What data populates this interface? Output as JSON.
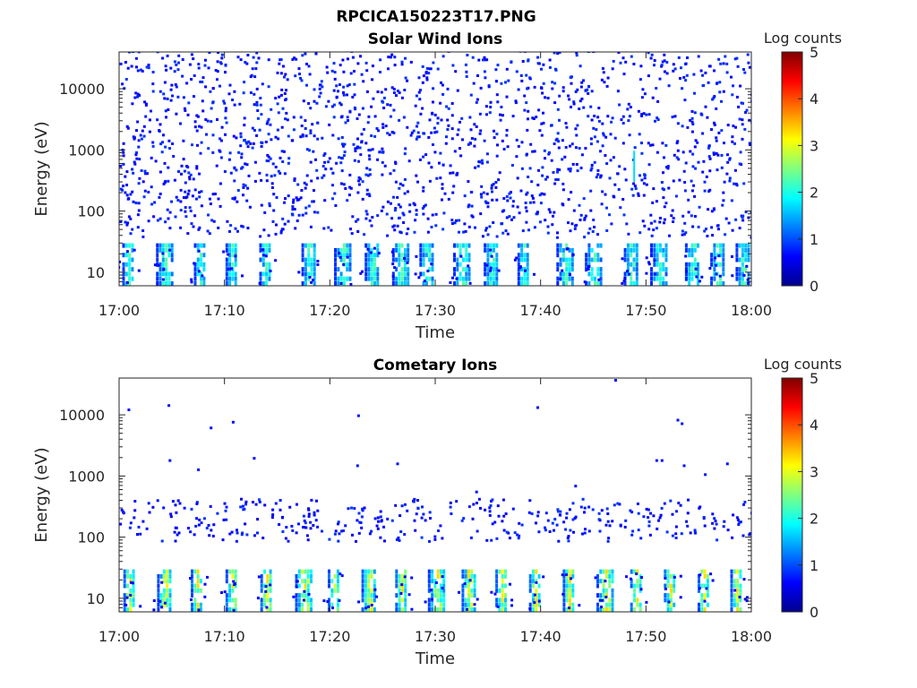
{
  "figure_title": "RPCICA150223T17.PNG",
  "chart_data": [
    {
      "type": "heatmap",
      "title": "Solar Wind Ions",
      "xlabel": "Time",
      "ylabel": "Energy (eV)",
      "x_tick_labels": [
        "17:00",
        "17:10",
        "17:20",
        "17:30",
        "17:40",
        "17:50",
        "18:00"
      ],
      "x_range_minutes": [
        0,
        60
      ],
      "y_scale": "log",
      "y_tick_labels": [
        "10",
        "100",
        "1000",
        "10000"
      ],
      "y_range": [
        6,
        40000
      ],
      "colorbar": {
        "title": "Log counts",
        "range": [
          0,
          5
        ],
        "tick_labels": [
          "0",
          "1",
          "2",
          "3",
          "4",
          "5"
        ],
        "colormap": "jet"
      },
      "features": {
        "background_noise_max_log_counts": 1,
        "low_energy_band_eV": [
          6,
          30
        ],
        "low_energy_band_peak_log_counts": 2,
        "burst_times_minutes": [
          0.8,
          4.0,
          7.6,
          10.6,
          13.8,
          17.8,
          20.9,
          23.8,
          26.4,
          29.0,
          32.2,
          35.1,
          38.3,
          42.0,
          44.7,
          48.4,
          50.9,
          54.2,
          56.6,
          59.0
        ],
        "spike": {
          "time_minutes": 48.8,
          "energy_range_eV": [
            300,
            900
          ],
          "log_counts": 1.7
        }
      }
    },
    {
      "type": "heatmap",
      "title": "Cometary Ions",
      "xlabel": "Time",
      "ylabel": "Energy (eV)",
      "x_tick_labels": [
        "17:00",
        "17:10",
        "17:20",
        "17:30",
        "17:40",
        "17:50",
        "18:00"
      ],
      "x_range_minutes": [
        0,
        60
      ],
      "y_scale": "log",
      "y_tick_labels": [
        "10",
        "100",
        "1000",
        "10000"
      ],
      "y_range": [
        6,
        40000
      ],
      "colorbar": {
        "title": "Log counts",
        "range": [
          0,
          5
        ],
        "tick_labels": [
          "0",
          "1",
          "2",
          "3",
          "4",
          "5"
        ],
        "colormap": "jet"
      },
      "features": {
        "scatter_energy_band_eV": [
          80,
          400
        ],
        "low_energy_band_eV": [
          6,
          30
        ],
        "low_energy_band_peak_log_counts": 3,
        "burst_times_minutes": [
          0.9,
          4.1,
          7.3,
          10.6,
          13.9,
          17.2,
          20.3,
          23.5,
          26.7,
          29.8,
          33.0,
          36.2,
          39.4,
          42.6,
          45.8,
          49.0,
          52.2,
          55.4,
          58.5
        ],
        "isolated_points": [
          {
            "t": 0.8,
            "e": 11500
          },
          {
            "t": 4.6,
            "e": 13500
          },
          {
            "t": 4.7,
            "e": 1700
          },
          {
            "t": 7.4,
            "e": 1200
          },
          {
            "t": 8.6,
            "e": 5800
          },
          {
            "t": 10.7,
            "e": 7200
          },
          {
            "t": 12.7,
            "e": 1850
          },
          {
            "t": 22.6,
            "e": 9200
          },
          {
            "t": 22.5,
            "e": 1400
          },
          {
            "t": 26.3,
            "e": 1500
          },
          {
            "t": 33.8,
            "e": 520
          },
          {
            "t": 39.6,
            "e": 12500
          },
          {
            "t": 43.2,
            "e": 650
          },
          {
            "t": 47.0,
            "e": 35000
          },
          {
            "t": 50.9,
            "e": 1700
          },
          {
            "t": 51.4,
            "e": 1700
          },
          {
            "t": 52.9,
            "e": 7800
          },
          {
            "t": 53.3,
            "e": 6800
          },
          {
            "t": 53.5,
            "e": 1400
          },
          {
            "t": 55.5,
            "e": 1000
          },
          {
            "t": 57.6,
            "e": 1500
          }
        ]
      }
    }
  ]
}
